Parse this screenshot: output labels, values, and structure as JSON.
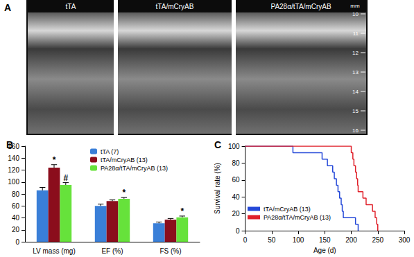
{
  "panel_a": {
    "label": "A",
    "images": [
      {
        "title": "tTA"
      },
      {
        "title": "tTA/mCryAB"
      },
      {
        "title": "PA28α/tTA/mCryAB"
      }
    ],
    "scale": {
      "unit": "mm",
      "ticks": [
        10,
        11,
        12,
        13,
        14,
        15,
        16
      ]
    }
  },
  "chart_data": [
    {
      "type": "bar",
      "label": "B",
      "categories": [
        "LV mass (mg)",
        "EF (%)",
        "FS (%)"
      ],
      "series": [
        {
          "name": "tTA (7)",
          "color": "#3a7fd8",
          "values": [
            86,
            60,
            31
          ],
          "errors": [
            5,
            3,
            2
          ],
          "marks": [
            null,
            null,
            null
          ]
        },
        {
          "name": "tTA/mCryAB (13)",
          "color": "#8b0d1c",
          "values": [
            124,
            68,
            37
          ],
          "errors": [
            5,
            2,
            2
          ],
          "marks": [
            "*",
            null,
            null
          ]
        },
        {
          "name": "PA28α/tTA/mCryAB (13)",
          "color": "#66e23b",
          "values": [
            95,
            72,
            41
          ],
          "errors": [
            4,
            2,
            2
          ],
          "marks": [
            "#",
            "*",
            "*"
          ]
        }
      ],
      "ylim": [
        0,
        160
      ],
      "yticks": [
        0,
        20,
        40,
        60,
        80,
        100,
        120,
        140,
        160
      ],
      "grid": false,
      "legend": "top"
    },
    {
      "type": "line",
      "label": "C",
      "xlabel": "Age (d)",
      "ylabel": "Survival rate (%)",
      "series": [
        {
          "name": "tTA/mCryAB (13)",
          "color": "#2448d8",
          "x": [
            0,
            90,
            145,
            155,
            165,
            168,
            172,
            175,
            178,
            181,
            183,
            185,
            208,
            213
          ],
          "values": [
            100,
            92.3,
            84.6,
            76.9,
            69.2,
            61.5,
            53.8,
            46.2,
            38.5,
            30.8,
            23.1,
            15.4,
            7.7,
            0
          ]
        },
        {
          "name": "PA28α/tTA/mCryAB (13)",
          "color": "#e0202a",
          "x": [
            0,
            200,
            203,
            205,
            208,
            210,
            212,
            213,
            222,
            228,
            240,
            245,
            248,
            250
          ],
          "values": [
            100,
            92.3,
            84.6,
            76.9,
            69.2,
            61.5,
            53.8,
            46.2,
            38.5,
            30.8,
            23.1,
            15.4,
            7.7,
            0
          ]
        }
      ],
      "xlim": [
        0,
        300
      ],
      "xticks": [
        0,
        50,
        100,
        150,
        200,
        250,
        300
      ],
      "ylim": [
        0,
        100
      ],
      "yticks": [
        0,
        20,
        40,
        60,
        80,
        100
      ],
      "line_style": "step",
      "grid": false,
      "legend": "lower left"
    }
  ]
}
